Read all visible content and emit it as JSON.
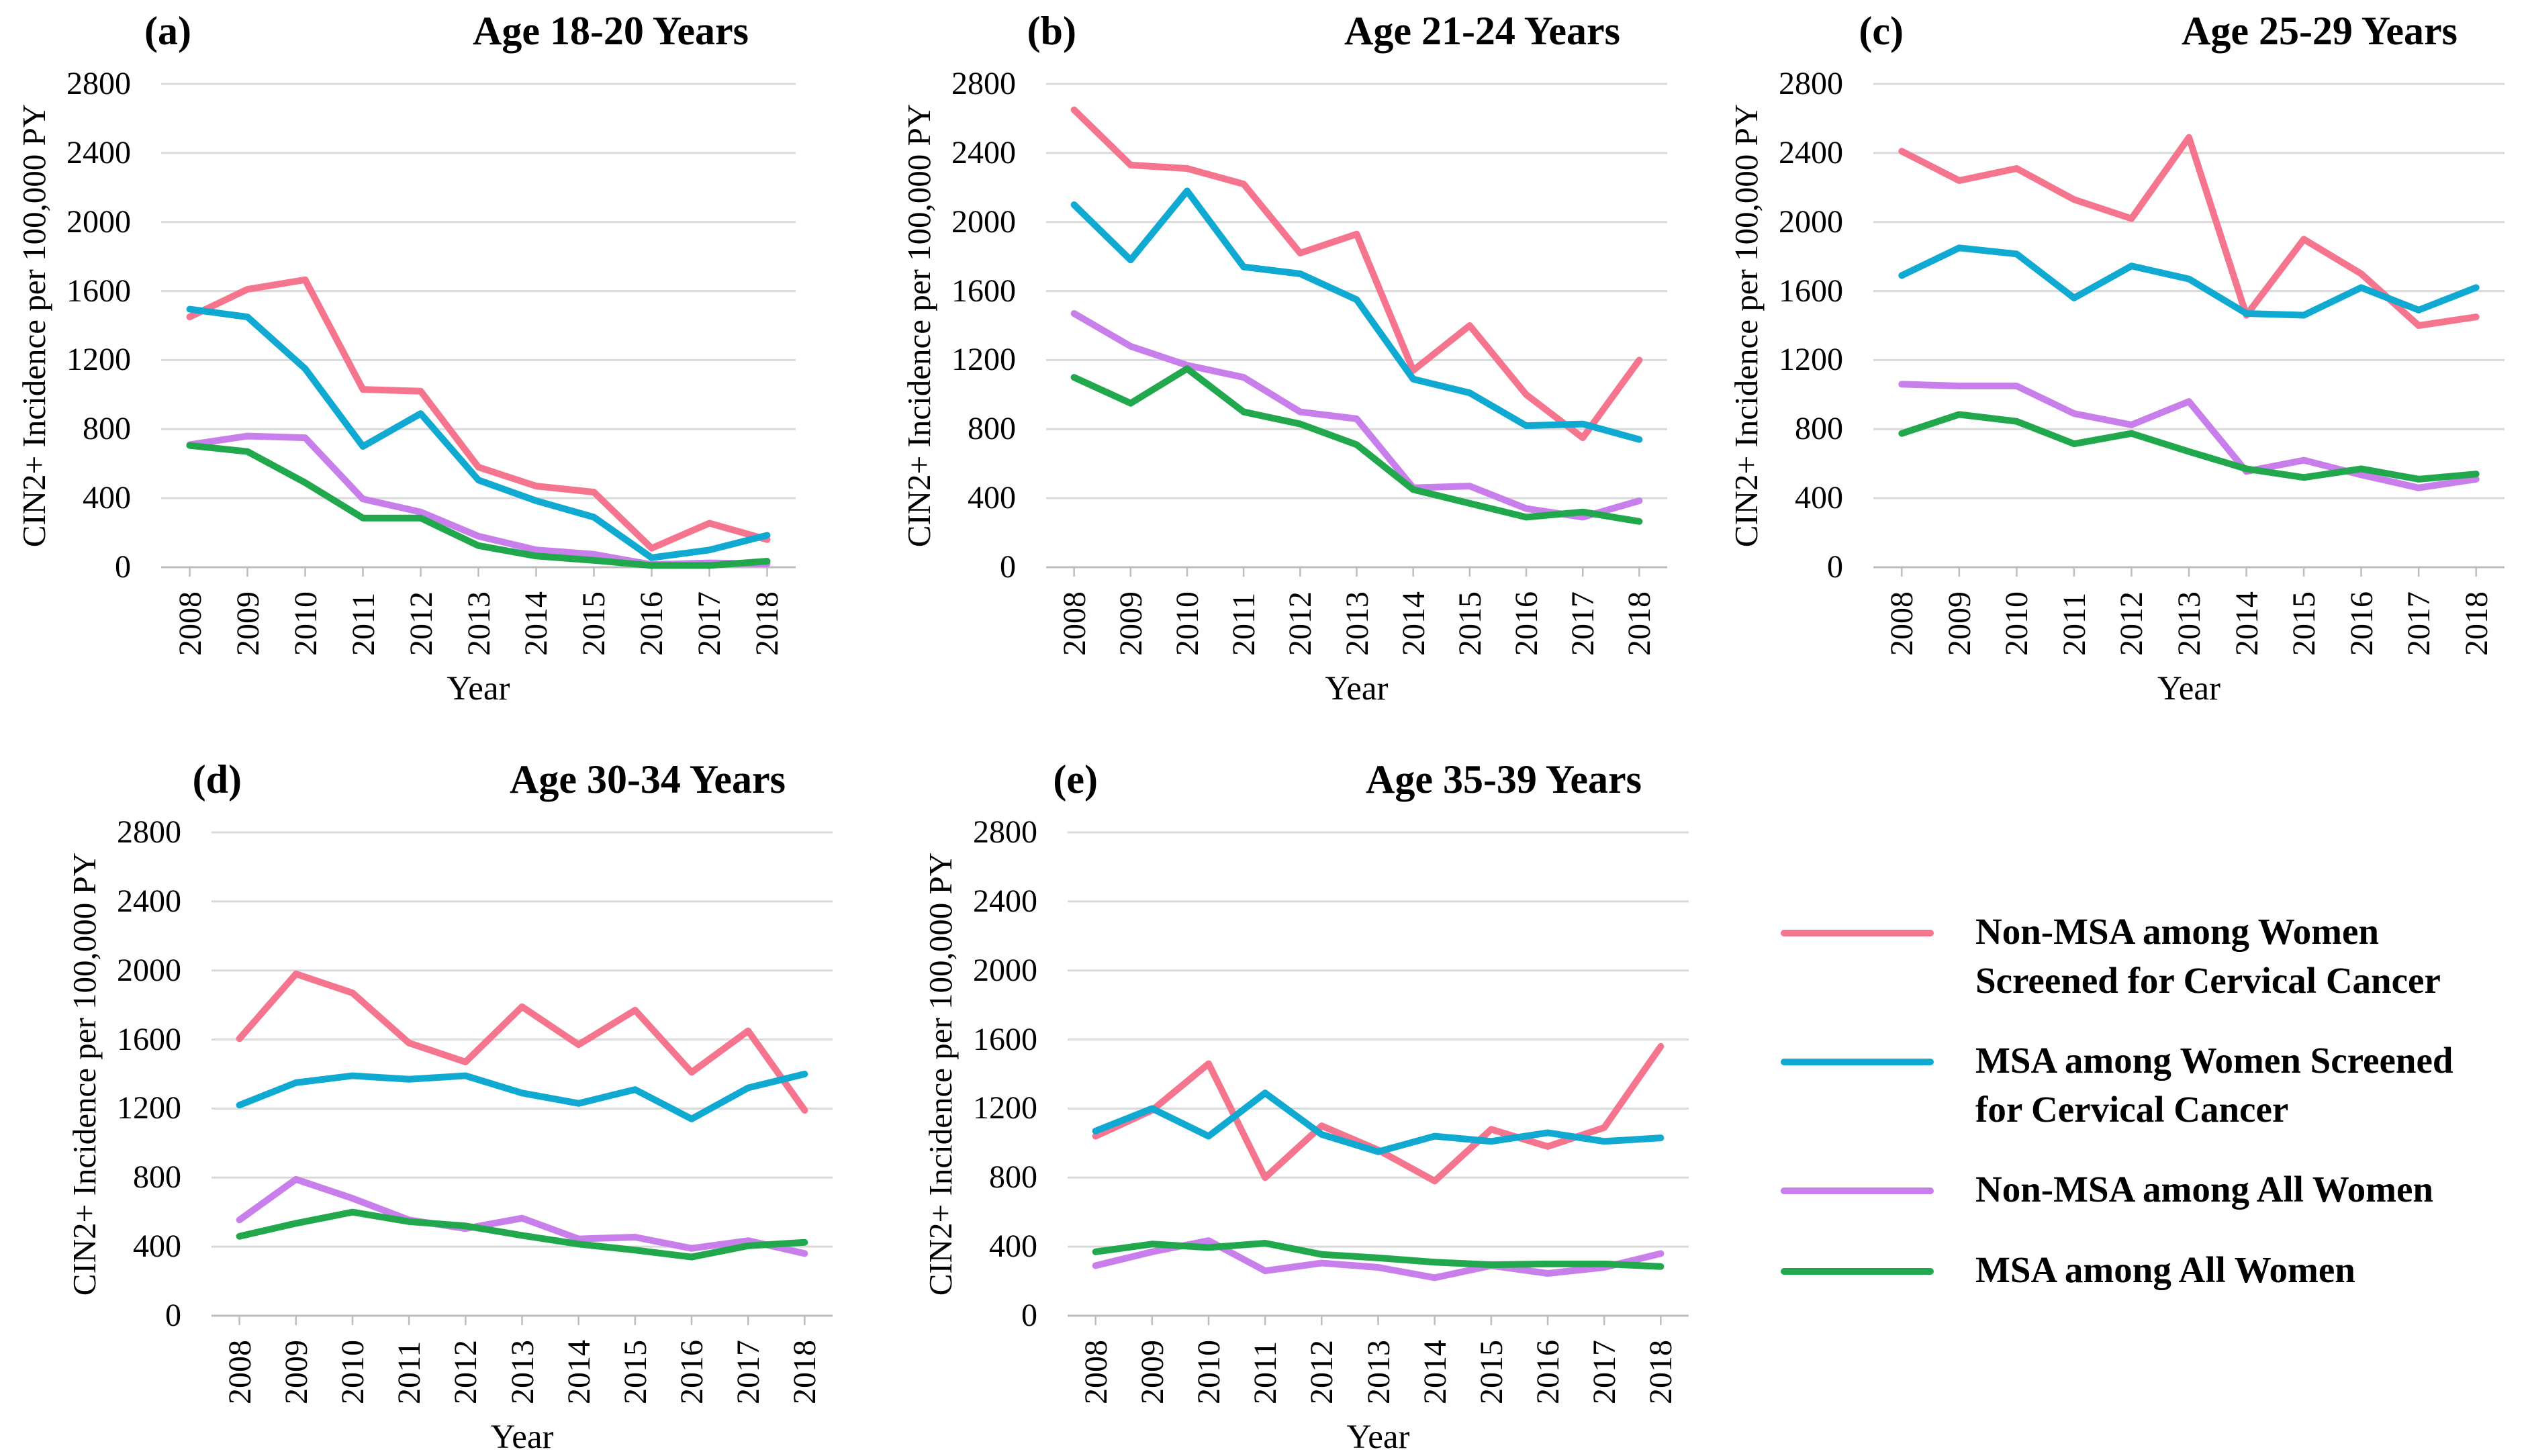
{
  "figure": {
    "background_color": "#ffffff",
    "text_color": "#000000",
    "gridline_color": "#d9d9d9",
    "axis_line_color": "#bdbdbd",
    "legend": {
      "entries": [
        {
          "label": "Non-MSA among Women\nScreened for Cervical Cancer",
          "color": "#F6758E",
          "series_key": "non-msa-screened"
        },
        {
          "label": "MSA among Women Screened\nfor Cervical Cancer",
          "color": "#0FA9D2",
          "series_key": "msa-screened"
        },
        {
          "label": "Non-MSA among All Women",
          "color": "#C97FEB",
          "series_key": "non-msa-all"
        },
        {
          "label": "MSA among All Women",
          "color": "#22A84C",
          "series_key": "msa-all"
        }
      ]
    }
  },
  "chart_data": [
    {
      "type": "line",
      "panel_label": "(a)",
      "title": "Age 18-20 Years",
      "xlabel": "Year",
      "ylabel": "CIN2+ Incidence per 100,000 PY",
      "ylim": [
        0,
        2800
      ],
      "y_ticks": [
        0,
        400,
        800,
        1200,
        1600,
        2000,
        2400,
        2800
      ],
      "grid": true,
      "x": [
        2008,
        2009,
        2010,
        2011,
        2012,
        2013,
        2014,
        2015,
        2016,
        2017,
        2018
      ],
      "series": [
        {
          "name": "Non-MSA among Women Screened for Cervical Cancer",
          "key": "non-msa-screened",
          "values": [
            1450,
            1610,
            1665,
            1030,
            1020,
            580,
            470,
            435,
            110,
            255,
            160
          ]
        },
        {
          "name": "MSA among Women Screened for Cervical Cancer",
          "key": "msa-screened",
          "values": [
            1495,
            1450,
            1150,
            700,
            890,
            505,
            385,
            290,
            55,
            100,
            185
          ]
        },
        {
          "name": "Non-MSA among All Women",
          "key": "non-msa-all",
          "values": [
            710,
            760,
            750,
            395,
            320,
            180,
            100,
            75,
            15,
            25,
            20
          ]
        },
        {
          "name": "MSA among All Women",
          "key": "msa-all",
          "values": [
            705,
            670,
            490,
            285,
            285,
            125,
            65,
            40,
            10,
            10,
            35
          ]
        }
      ]
    },
    {
      "type": "line",
      "panel_label": "(b)",
      "title": "Age 21-24 Years",
      "xlabel": "Year",
      "ylabel": "CIN2+ Incidence per 100,000 PY",
      "ylim": [
        0,
        2800
      ],
      "y_ticks": [
        0,
        400,
        800,
        1200,
        1600,
        2000,
        2400,
        2800
      ],
      "grid": true,
      "x": [
        2008,
        2009,
        2010,
        2011,
        2012,
        2013,
        2014,
        2015,
        2016,
        2017,
        2018
      ],
      "series": [
        {
          "name": "Non-MSA among Women Screened for Cervical Cancer",
          "key": "non-msa-screened",
          "values": [
            2650,
            2330,
            2310,
            2220,
            1820,
            1930,
            1140,
            1400,
            1000,
            750,
            1200
          ]
        },
        {
          "name": "MSA among Women Screened for Cervical Cancer",
          "key": "msa-screened",
          "values": [
            2100,
            1780,
            2180,
            1740,
            1700,
            1550,
            1090,
            1010,
            820,
            830,
            740
          ]
        },
        {
          "name": "Non-MSA among All Women",
          "key": "non-msa-all",
          "values": [
            1470,
            1280,
            1170,
            1100,
            900,
            860,
            460,
            470,
            340,
            290,
            385
          ]
        },
        {
          "name": "MSA among All Women",
          "key": "msa-all",
          "values": [
            1100,
            950,
            1150,
            900,
            830,
            710,
            450,
            370,
            290,
            320,
            265
          ]
        }
      ]
    },
    {
      "type": "line",
      "panel_label": "(c)",
      "title": "Age 25-29 Years",
      "xlabel": "Year",
      "ylabel": "CIN2+ Incidence per 100,000 PY",
      "ylim": [
        0,
        2800
      ],
      "y_ticks": [
        0,
        400,
        800,
        1200,
        1600,
        2000,
        2400,
        2800
      ],
      "grid": true,
      "x": [
        2008,
        2009,
        2010,
        2011,
        2012,
        2013,
        2014,
        2015,
        2016,
        2017,
        2018
      ],
      "series": [
        {
          "name": "Non-MSA among Women Screened for Cervical Cancer",
          "key": "non-msa-screened",
          "values": [
            2410,
            2240,
            2310,
            2130,
            2020,
            2490,
            1460,
            1900,
            1700,
            1400,
            1450
          ]
        },
        {
          "name": "MSA among Women Screened for Cervical Cancer",
          "key": "msa-screened",
          "values": [
            1690,
            1850,
            1815,
            1560,
            1745,
            1670,
            1470,
            1460,
            1620,
            1490,
            1620
          ]
        },
        {
          "name": "Non-MSA among All Women",
          "key": "non-msa-all",
          "values": [
            1060,
            1050,
            1050,
            890,
            825,
            960,
            555,
            620,
            535,
            460,
            510
          ]
        },
        {
          "name": "MSA among All Women",
          "key": "msa-all",
          "values": [
            775,
            885,
            845,
            715,
            775,
            670,
            570,
            520,
            570,
            510,
            540
          ]
        }
      ]
    },
    {
      "type": "line",
      "panel_label": "(d)",
      "title": "Age 30-34 Years",
      "xlabel": "Year",
      "ylabel": "CIN2+ Incidence per 100,000 PY",
      "ylim": [
        0,
        2800
      ],
      "y_ticks": [
        0,
        400,
        800,
        1200,
        1600,
        2000,
        2400,
        2800
      ],
      "grid": true,
      "x": [
        2008,
        2009,
        2010,
        2011,
        2012,
        2013,
        2014,
        2015,
        2016,
        2017,
        2018
      ],
      "series": [
        {
          "name": "Non-MSA among Women Screened for Cervical Cancer",
          "key": "non-msa-screened",
          "values": [
            1605,
            1980,
            1870,
            1580,
            1470,
            1790,
            1570,
            1770,
            1410,
            1650,
            1190
          ]
        },
        {
          "name": "MSA among Women Screened for Cervical Cancer",
          "key": "msa-screened",
          "values": [
            1220,
            1350,
            1390,
            1370,
            1390,
            1290,
            1230,
            1310,
            1140,
            1320,
            1400
          ]
        },
        {
          "name": "Non-MSA among All Women",
          "key": "non-msa-all",
          "values": [
            555,
            790,
            680,
            555,
            505,
            565,
            445,
            455,
            390,
            435,
            360
          ]
        },
        {
          "name": "MSA among All Women",
          "key": "msa-all",
          "values": [
            460,
            535,
            600,
            545,
            520,
            465,
            415,
            380,
            340,
            405,
            425
          ]
        }
      ]
    },
    {
      "type": "line",
      "panel_label": "(e)",
      "title": "Age 35-39 Years",
      "xlabel": "Year",
      "ylabel": "CIN2+ Incidence per 100,000 PY",
      "ylim": [
        0,
        2800
      ],
      "y_ticks": [
        0,
        400,
        800,
        1200,
        1600,
        2000,
        2400,
        2800
      ],
      "grid": true,
      "x": [
        2008,
        2009,
        2010,
        2011,
        2012,
        2013,
        2014,
        2015,
        2016,
        2017,
        2018
      ],
      "series": [
        {
          "name": "Non-MSA among Women Screened for Cervical Cancer",
          "key": "non-msa-screened",
          "values": [
            1040,
            1190,
            1460,
            800,
            1100,
            960,
            780,
            1080,
            980,
            1090,
            1560
          ]
        },
        {
          "name": "MSA among Women Screened for Cervical Cancer",
          "key": "msa-screened",
          "values": [
            1070,
            1200,
            1040,
            1290,
            1050,
            950,
            1040,
            1010,
            1060,
            1010,
            1030
          ]
        },
        {
          "name": "Non-MSA among All Women",
          "key": "non-msa-all",
          "values": [
            290,
            370,
            435,
            260,
            305,
            280,
            220,
            290,
            245,
            280,
            360
          ]
        },
        {
          "name": "MSA among All Women",
          "key": "msa-all",
          "values": [
            370,
            415,
            395,
            420,
            355,
            335,
            310,
            295,
            300,
            300,
            285
          ]
        }
      ]
    }
  ]
}
